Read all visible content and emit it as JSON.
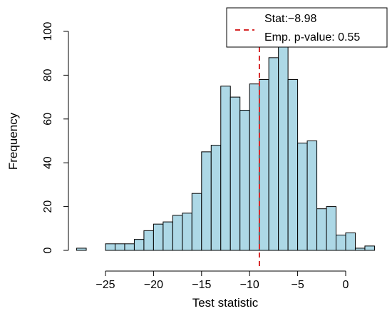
{
  "chart_data": {
    "type": "bar",
    "title": "",
    "xlabel": "Test statistic",
    "ylabel": "Frequency",
    "xlim": [
      -28,
      3
    ],
    "ylim": [
      0,
      100
    ],
    "xticks": [
      -25,
      -20,
      -15,
      -10,
      -5,
      0
    ],
    "xtick_labels": [
      "−25",
      "−20",
      "−15",
      "−10",
      "−5",
      "0"
    ],
    "yticks": [
      0,
      20,
      40,
      60,
      80,
      100
    ],
    "ytick_labels": [
      "0",
      "20",
      "40",
      "60",
      "80",
      "100"
    ],
    "bin_width": 1,
    "bins": [
      {
        "x0": -28,
        "x1": -27,
        "count": 1
      },
      {
        "x0": -27,
        "x1": -26,
        "count": 0
      },
      {
        "x0": -26,
        "x1": -25,
        "count": 0
      },
      {
        "x0": -25,
        "x1": -24,
        "count": 3
      },
      {
        "x0": -24,
        "x1": -23,
        "count": 3
      },
      {
        "x0": -23,
        "x1": -22,
        "count": 3
      },
      {
        "x0": -22,
        "x1": -21,
        "count": 5
      },
      {
        "x0": -21,
        "x1": -20,
        "count": 9
      },
      {
        "x0": -20,
        "x1": -19,
        "count": 12
      },
      {
        "x0": -19,
        "x1": -18,
        "count": 13
      },
      {
        "x0": -18,
        "x1": -17,
        "count": 16
      },
      {
        "x0": -17,
        "x1": -16,
        "count": 17
      },
      {
        "x0": -16,
        "x1": -15,
        "count": 26
      },
      {
        "x0": -15,
        "x1": -14,
        "count": 45
      },
      {
        "x0": -14,
        "x1": -13,
        "count": 48
      },
      {
        "x0": -13,
        "x1": -12,
        "count": 75
      },
      {
        "x0": -12,
        "x1": -11,
        "count": 70
      },
      {
        "x0": -11,
        "x1": -10,
        "count": 64
      },
      {
        "x0": -10,
        "x1": -9,
        "count": 76
      },
      {
        "x0": -9,
        "x1": -8,
        "count": 78
      },
      {
        "x0": -8,
        "x1": -7,
        "count": 88
      },
      {
        "x0": -7,
        "x1": -6,
        "count": 99
      },
      {
        "x0": -6,
        "x1": -5,
        "count": 78
      },
      {
        "x0": -5,
        "x1": -4,
        "count": 49
      },
      {
        "x0": -4,
        "x1": -3,
        "count": 50
      },
      {
        "x0": -3,
        "x1": -2,
        "count": 19
      },
      {
        "x0": -2,
        "x1": -1,
        "count": 20
      },
      {
        "x0": -1,
        "x1": 0,
        "count": 7
      },
      {
        "x0": 0,
        "x1": 1,
        "count": 8
      },
      {
        "x0": 1,
        "x1": 2,
        "count": 1
      },
      {
        "x0": 2,
        "x1": 3,
        "count": 2
      }
    ],
    "stat_line": {
      "value": -8.98
    },
    "legend": {
      "placement": "top-right",
      "stat_label": "Stat:−8.98",
      "pvalue_label": "Emp. p-value: 0.55"
    },
    "colors": {
      "bar_fill": "#add8e6",
      "bar_stroke": "#000000",
      "stat_line": "#d62728"
    },
    "grid": false
  }
}
